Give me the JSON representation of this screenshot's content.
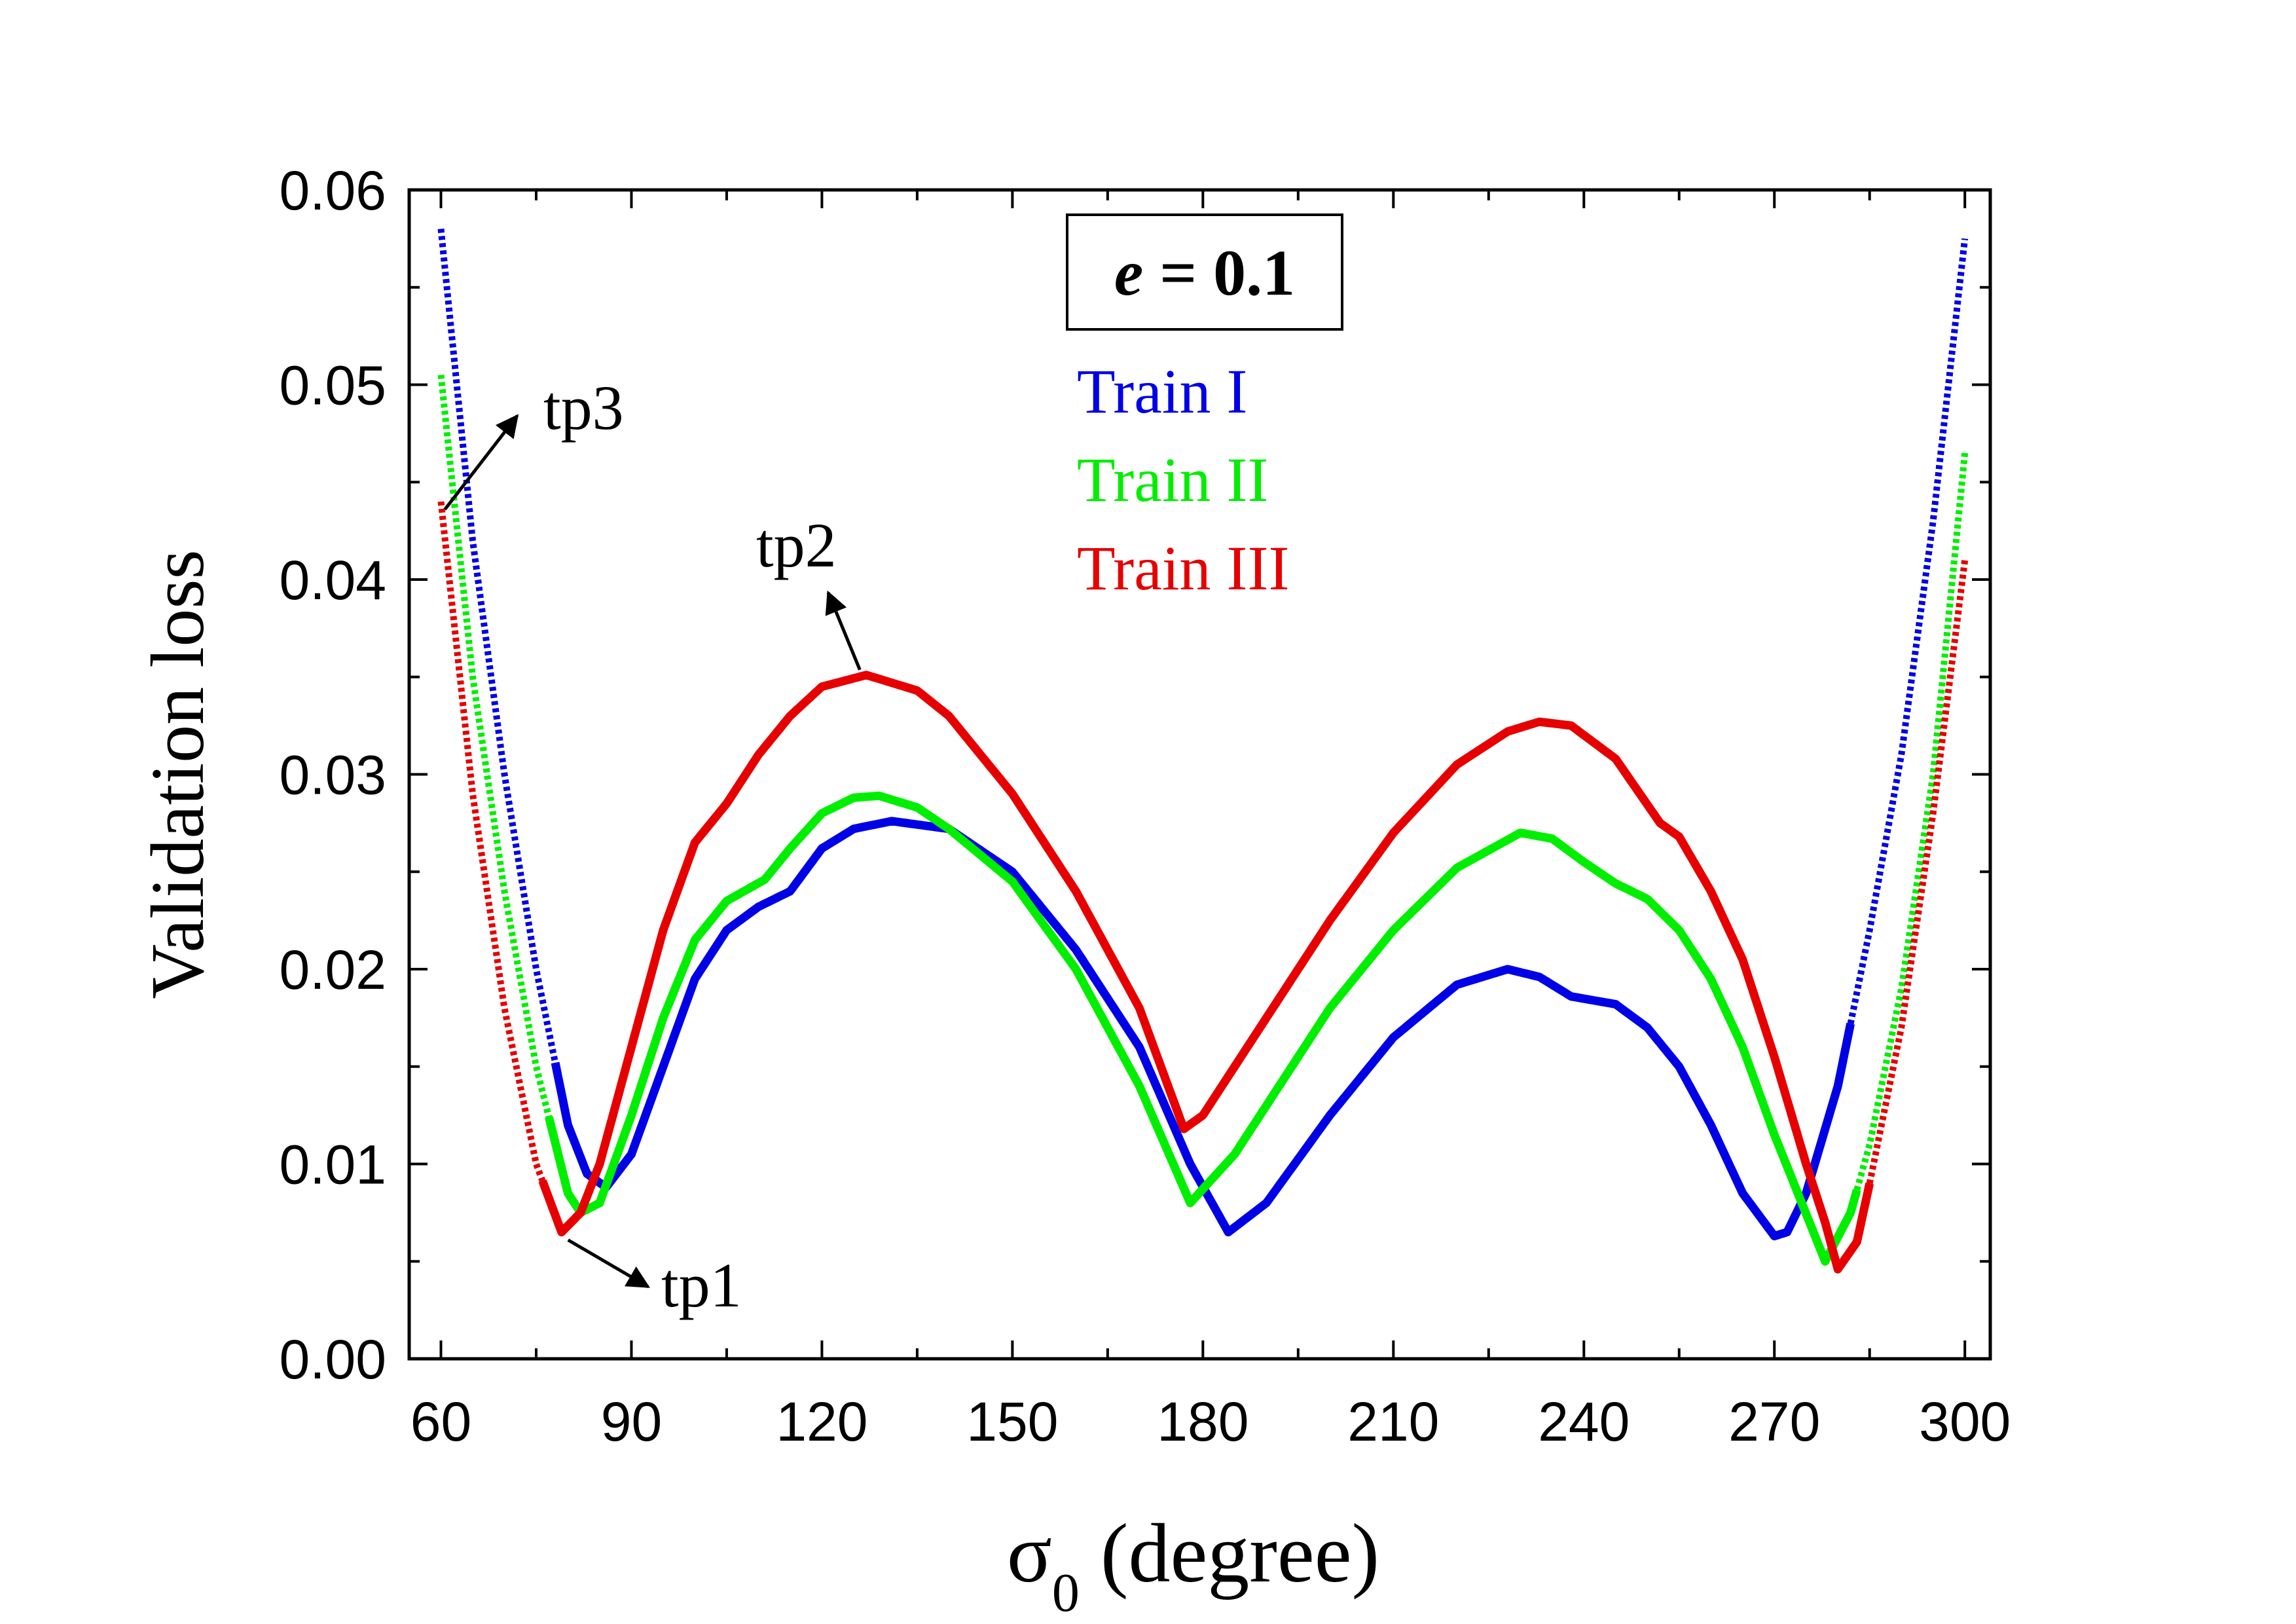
{
  "chart_data": {
    "type": "line",
    "xlabel": {
      "symbol": "σ",
      "subscript": "0",
      "unit": " (degree)"
    },
    "ylabel": "Validation loss",
    "xlim": [
      55,
      304
    ],
    "ylim": [
      0.0,
      0.06
    ],
    "x_ticks": [
      "60",
      "90",
      "120",
      "150",
      "180",
      "210",
      "240",
      "270",
      "300"
    ],
    "y_ticks": [
      "0.00",
      "0.01",
      "0.02",
      "0.03",
      "0.04",
      "0.05",
      "0.06"
    ],
    "grid": false,
    "legend_position": "top-center",
    "annotation_box": {
      "var": "e",
      "rest": " = 0.1"
    },
    "colors": {
      "Train I": "#0000e6",
      "Train II": "#00ee00",
      "Train III": "#e60000"
    },
    "series": [
      {
        "name": "Train I",
        "x": [
          60,
          65,
          70,
          75,
          80,
          83,
          86,
          90,
          95,
          100,
          105,
          110,
          115,
          120,
          125,
          131,
          140,
          150,
          160,
          170,
          178,
          184,
          190,
          200,
          210,
          220,
          228,
          233,
          238,
          245,
          250,
          255,
          260,
          265,
          270,
          272,
          275,
          280,
          285,
          290,
          295,
          300
        ],
        "y": [
          0.058,
          0.042,
          0.03,
          0.02,
          0.012,
          0.0095,
          0.0088,
          0.0105,
          0.015,
          0.0195,
          0.022,
          0.0232,
          0.024,
          0.0262,
          0.0272,
          0.0276,
          0.0272,
          0.025,
          0.021,
          0.016,
          0.01,
          0.0065,
          0.008,
          0.0125,
          0.0165,
          0.0192,
          0.02,
          0.0196,
          0.0186,
          0.0182,
          0.017,
          0.015,
          0.012,
          0.0085,
          0.0063,
          0.0065,
          0.0085,
          0.014,
          0.022,
          0.031,
          0.043,
          0.0575
        ],
        "dotted_ranges": [
          [
            60,
            78
          ],
          [
            282,
            300
          ]
        ]
      },
      {
        "name": "Train II",
        "x": [
          60,
          65,
          70,
          75,
          80,
          82,
          85,
          90,
          95,
          100,
          105,
          111,
          115,
          120,
          125,
          129,
          135,
          140,
          150,
          160,
          170,
          178,
          185,
          190,
          200,
          210,
          220,
          230,
          235,
          240,
          245,
          250,
          255,
          260,
          265,
          270,
          278,
          282,
          285,
          290,
          295,
          300
        ],
        "y": [
          0.0505,
          0.035,
          0.024,
          0.015,
          0.0085,
          0.0075,
          0.008,
          0.0125,
          0.0175,
          0.0215,
          0.0235,
          0.0246,
          0.0262,
          0.028,
          0.0288,
          0.0289,
          0.0283,
          0.0272,
          0.0245,
          0.02,
          0.014,
          0.008,
          0.0105,
          0.013,
          0.018,
          0.022,
          0.0252,
          0.027,
          0.0267,
          0.0255,
          0.0244,
          0.0236,
          0.022,
          0.0195,
          0.016,
          0.0115,
          0.005,
          0.0075,
          0.011,
          0.019,
          0.03,
          0.0465
        ],
        "dotted_ranges": [
          [
            60,
            77
          ],
          [
            283,
            300
          ]
        ]
      },
      {
        "name": "Train III",
        "x": [
          60,
          65,
          70,
          75,
          79,
          82,
          85,
          90,
          95,
          100,
          105,
          110,
          115,
          120,
          127,
          135,
          140,
          150,
          160,
          170,
          177,
          180,
          185,
          190,
          200,
          210,
          220,
          228,
          233,
          238,
          245,
          252,
          255,
          260,
          265,
          270,
          275,
          278,
          280,
          283,
          285,
          290,
          295,
          300
        ],
        "y": [
          0.044,
          0.029,
          0.018,
          0.01,
          0.0065,
          0.0075,
          0.01,
          0.016,
          0.022,
          0.0265,
          0.0285,
          0.031,
          0.033,
          0.0345,
          0.0351,
          0.0343,
          0.033,
          0.029,
          0.024,
          0.018,
          0.0118,
          0.0125,
          0.015,
          0.0175,
          0.0225,
          0.027,
          0.0305,
          0.0322,
          0.0327,
          0.0325,
          0.0308,
          0.0275,
          0.0268,
          0.024,
          0.0205,
          0.0155,
          0.01,
          0.007,
          0.0046,
          0.006,
          0.009,
          0.017,
          0.028,
          0.041
        ],
        "dotted_ranges": [
          [
            60,
            76
          ],
          [
            285,
            300
          ]
        ]
      }
    ],
    "annotations": [
      {
        "text": "tp1",
        "x": 79,
        "y": 0.0065
      },
      {
        "text": "tp2",
        "x": 127,
        "y": 0.0351
      },
      {
        "text": "tp3",
        "x": 60,
        "y": 0.044
      }
    ]
  }
}
